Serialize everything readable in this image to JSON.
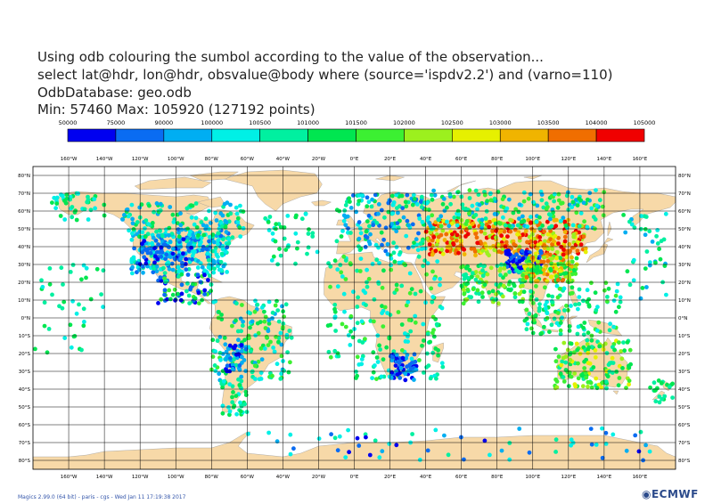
{
  "title_lines": [
    "Using odb colouring the sumbol according to the value of the observation...",
    "select lat@hdr, lon@hdr, obsvalue@body where (source='ispdv2.2') and (varno=110)",
    "OdbDatabase: geo.odb",
    "Min: 57460 Max: 105920 (127192 points)"
  ],
  "legend": {
    "labels": [
      "50000",
      "75000",
      "90000",
      "100000",
      "100500",
      "101000",
      "101500",
      "102000",
      "102500",
      "103000",
      "103500",
      "104000",
      "105000"
    ],
    "colors": [
      "#0000f0",
      "#0a6cf2",
      "#00aef2",
      "#00f0e6",
      "#00f0a0",
      "#00e650",
      "#3cf032",
      "#9cf01e",
      "#e6f000",
      "#f0b400",
      "#f06e00",
      "#f00000"
    ]
  },
  "map": {
    "lon_labels": [
      "160°W",
      "140°W",
      "120°W",
      "100°W",
      "80°W",
      "60°W",
      "40°W",
      "20°W",
      "0°E",
      "20°E",
      "40°E",
      "60°E",
      "80°E",
      "100°E",
      "120°E",
      "140°E",
      "160°E"
    ],
    "lat_labels": [
      "80°N",
      "70°N",
      "60°N",
      "50°N",
      "40°N",
      "30°N",
      "20°N",
      "10°N",
      "0°N",
      "10°S",
      "20°S",
      "30°S",
      "40°S",
      "50°S",
      "60°S",
      "70°S",
      "80°S"
    ],
    "land_color": "#f7d9a8",
    "ocean_color": "#ffffff"
  },
  "footer": {
    "credit": "Magics 2.99.0 (64 bit) - paris - cgs - Wed Jan 11 17:19:38 2017",
    "logo": "ECMWF"
  }
}
